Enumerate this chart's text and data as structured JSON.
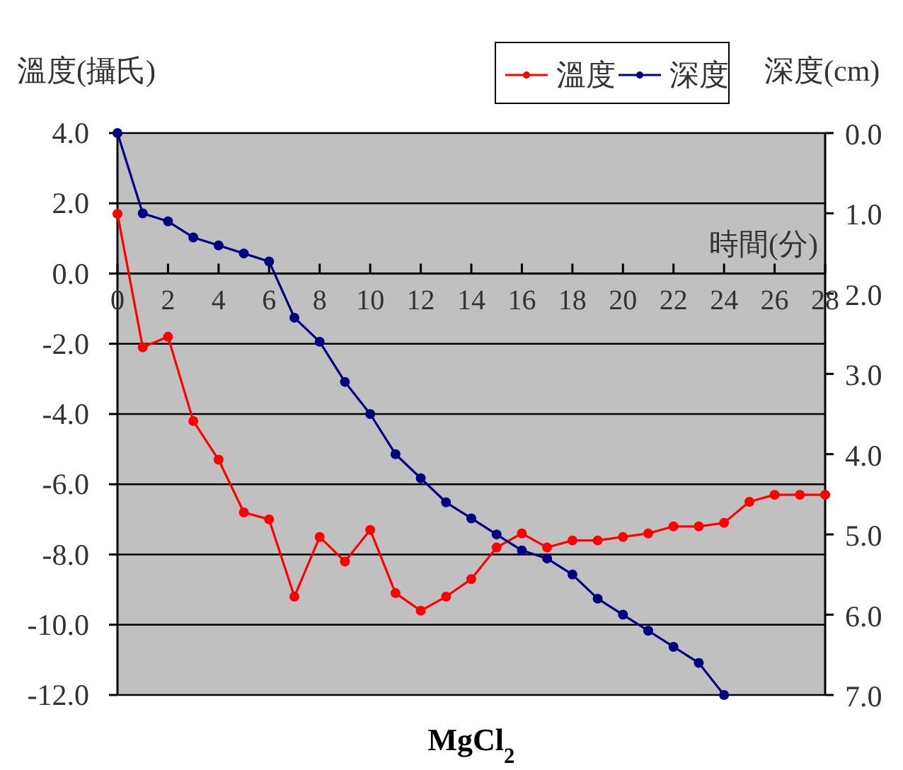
{
  "chart_data": {
    "type": "line",
    "title": "MgCl$_{2}$",
    "xlabel": "時間(分)",
    "ylabel": "溫度(攝氏)",
    "y2label": "深度(cm)",
    "x": [
      0,
      1,
      2,
      3,
      4,
      5,
      6,
      7,
      8,
      9,
      10,
      11,
      12,
      13,
      14,
      15,
      16,
      17,
      18,
      19,
      20,
      21,
      22,
      23,
      24,
      25,
      26,
      27,
      28
    ],
    "series": [
      {
        "name": "溫度",
        "color": "#ff0000",
        "values": [
          1.7,
          -2.1,
          -1.8,
          -4.2,
          -5.3,
          -6.8,
          -7.0,
          -9.2,
          -7.5,
          -8.2,
          -7.3,
          -9.1,
          -9.6,
          -9.2,
          -8.7,
          -7.8,
          -7.4,
          -7.8,
          -7.6,
          -7.6,
          -7.5,
          -7.4,
          -7.2,
          -7.2,
          -7.1,
          -6.5,
          -6.3,
          -6.3,
          -6.3
        ]
      },
      {
        "name": "深度",
        "color": "#000080",
        "axis": "y2",
        "values": [
          0.0,
          1.0,
          1.1,
          1.3,
          1.4,
          1.5,
          1.6,
          2.3,
          2.6,
          3.1,
          3.5,
          4.0,
          4.3,
          4.6,
          4.8,
          5.0,
          5.2,
          5.3,
          5.5,
          5.8,
          6.0,
          6.2,
          6.4,
          6.6,
          7.0,
          null,
          null,
          null,
          null
        ]
      }
    ],
    "xlim": [
      0,
      28
    ],
    "xticks": [
      0,
      2,
      4,
      6,
      8,
      10,
      12,
      14,
      16,
      18,
      20,
      22,
      24,
      26,
      28
    ],
    "ylim": [
      -12,
      4
    ],
    "yticks": [
      {
        "value": 4,
        "label": "4.0"
      },
      {
        "value": 2,
        "label": "2.0"
      },
      {
        "value": 0,
        "label": "0.0"
      },
      {
        "value": -2,
        "label": "-2.0"
      },
      {
        "value": -4,
        "label": "-4.0"
      },
      {
        "value": -6,
        "label": "-6.0"
      },
      {
        "value": -8,
        "label": "-8.0"
      },
      {
        "value": -10,
        "label": "-10.0"
      },
      {
        "value": -12,
        "label": "-12.0"
      }
    ],
    "y2lim": [
      7,
      0
    ],
    "y2ticks": [
      {
        "value": 0,
        "label": "0.0"
      },
      {
        "value": 1,
        "label": "1.0"
      },
      {
        "value": 2,
        "label": "2.0"
      },
      {
        "value": 3,
        "label": "3.0"
      },
      {
        "value": 4,
        "label": "4.0"
      },
      {
        "value": 5,
        "label": "5.0"
      },
      {
        "value": 6,
        "label": "6.0"
      },
      {
        "value": 7,
        "label": "7.0"
      }
    ],
    "grid": "y",
    "legend": "top",
    "marker": "circle",
    "line_style": "solid"
  }
}
